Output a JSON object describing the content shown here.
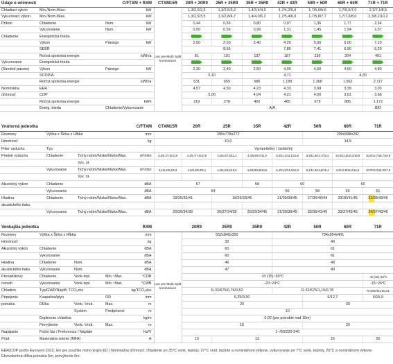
{
  "performance": {
    "header": {
      "title": "Údaje o účinnosti",
      "model": "C/FTXM + RXM",
      "columns": [
        "CTXM15R",
        "20R + 20R9",
        "25R + 25R9",
        "35R + 35R9",
        "42R + 42R",
        "50R + 50R",
        "60R + 60R",
        "71R + 71R"
      ]
    },
    "note": "Len pre Multi Split kombinácie",
    "rows": [
      {
        "label": "Chladiaci výkon",
        "sub": "Min./Nom./Max.",
        "unit": "kW",
        "values": [
          "1,3/2,0/2,6",
          "1,3/2,5/3,2",
          "1,4/3,4/4,0",
          "1,7/4,2/5,0",
          "1,7/5,0/5,6",
          "1,7/6,0/7,0",
          "2,3/7,1/8,5"
        ]
      },
      {
        "label": "Vykurovací výkon",
        "sub": "Min./Nom./Max.",
        "unit": "kW",
        "values": [
          "1,3/2,5/3,5",
          "1,3/2,8/4,7",
          "1,4/4,0/5,2",
          "1,7/5,4/6,0",
          "1,7/5,8/7,7",
          "1,7/7,0/8,0",
          "2,3/8,2/10,2"
        ]
      },
      {
        "label": "Príkon",
        "sub": "Chladenie",
        "detail": "Nom.",
        "unit": "kW",
        "values": [
          "0,44",
          "0,56",
          "0,80",
          "0,97",
          "1,36",
          "1,77",
          "2,34"
        ]
      },
      {
        "sub": "Vykurovanie",
        "detail": "Nom.",
        "unit": "kW",
        "values": [
          "0,50",
          "0,56",
          "0,99",
          "1,31",
          "1,45",
          "1,94",
          "2,57"
        ]
      },
      {
        "label": "Chladenie",
        "sub": "Energetická trieda"
      },
      {
        "sub": "Výkon",
        "detail": "Pdesign",
        "unit": "kW",
        "values": [
          "2,00",
          "2,50",
          "3,40",
          "4,20",
          "5,00",
          "6,00",
          "7,10"
        ]
      },
      {
        "sub": "SEER",
        "values": [
          "8,65",
          "7,85",
          "7,41",
          "6,90",
          "6,20"
        ]
      },
      {
        "sub": "Ročná spotreba energie",
        "unit": "kWh/a",
        "values": [
          "81",
          "101",
          "137",
          "187",
          "236",
          "304",
          "401"
        ]
      },
      {
        "label": "Vykurovanie",
        "sub": "Energetická trieda"
      },
      {
        "label": "(Stredné pásmo)",
        "sub": "Výkon",
        "detail": "Pdesign",
        "unit": "kW",
        "values": [
          "2,30",
          "2,40",
          "2,50",
          "4,00",
          "4,60",
          "4,60",
          "4,80"
        ]
      },
      {
        "sub": "SCOP/A",
        "values": [
          "5,10",
          "4,71",
          "4,30"
        ]
      },
      {
        "sub": "Ročná spotreba energie",
        "unit": "kWh/a",
        "values": [
          "631",
          "659",
          "686",
          "1.189",
          "1.368",
          "1.562",
          "2.117"
        ]
      },
      {
        "label": "Nominálna",
        "sub": "EER",
        "values": [
          "4,57",
          "4,50",
          "4,23",
          "4,33",
          "3,68",
          "3,39",
          "3,03"
        ]
      },
      {
        "label": "účinnosť",
        "sub": "COP",
        "values": [
          "5,00",
          "4,04",
          "4,21",
          "4,00",
          "3,61",
          "3,68"
        ]
      },
      {
        "sub": "Ročná spotreba energie",
        "unit": "kWh",
        "values": [
          "219",
          "278",
          "402",
          "485",
          "679",
          "885",
          "1.172"
        ]
      },
      {
        "sub": "Energ. trieda",
        "detail": "Chladenie/Vykurovanie",
        "values": [
          "A/A",
          "B/D"
        ]
      }
    ]
  },
  "indoor_unit": {
    "header": {
      "title": "Vnútorná jednotka",
      "model": "C/FTXM",
      "columns": [
        "CTXM15R",
        "20R",
        "25R",
        "35R",
        "42R",
        "50R",
        "60R",
        "71R"
      ]
    },
    "rows": [
      {
        "label": "Rozmery",
        "sub": "Výška x Šírka x Hĺbka",
        "unit": "mm",
        "values": [
          "295x778x272",
          "299x998x292"
        ]
      },
      {
        "label": "Hmotnosť",
        "unit": "kg",
        "values": [
          "10,0",
          "14,5"
        ]
      },
      {
        "label": "Filter vzduchu",
        "sub": "Typ",
        "values": [
          "Vymeniteľný / čistiteľný"
        ]
      },
      {
        "label": "Prietok vzduchu",
        "sub": "Chladenie",
        "detail": "Tichý režim/Nízke/Nízke/Max.",
        "unit": "m³/min",
        "values": [
          "4,3/5,7/7,5/10,9",
          "4,1/5,7/7,6/10,9",
          "4,2/6,0/7,8/11,3",
          "4,3/6,9/8,7/11,0",
          "8,3/11,4/14,1/15,8",
          "8,3/11,8/14,7/16,3",
          "10,0/12,5/15,2/16,9",
          "10,8/12,7/16,7/16,9"
        ]
      },
      {
        "detail": "Vys. ot."
      },
      {
        "sub": "Vykurovanie",
        "detail": "Tichý režim/Nízke/Nízke/Max.",
        "unit": "m³/min",
        "values": [
          "5,1/6,2/8,2/9,3",
          "4,9/6,3/8,0/9,4",
          "4,9/6,5/8,5/10,5",
          "4,9/6,8/8,9/10,9",
          "9,4/11,6/14,5/15,8",
          "9,4/11,9/14,8/16,4",
          "9,9/12,8/15,0/16,9",
          "10,0/13,3/16,3/17,9"
        ]
      },
      {
        "detail": "Vys. ot."
      },
      {
        "label": "Akustický výkon",
        "sub": "Chladenie",
        "unit": "dBA",
        "values": [
          "57",
          "58",
          "60",
          "60"
        ]
      },
      {
        "sub": "Vykurovanie",
        "unit": "dBA",
        "values": [
          "54",
          "56",
          "58",
          "59",
          "61"
        ]
      },
      {
        "label": "Hladina",
        "sub": "Chladenie",
        "detail": "Tichý režim/Nízke/Nízke/Max.",
        "unit": "dBA",
        "values": [
          "19/25/33/41",
          "19/29/33/45",
          "21/30/39/45",
          "27/36/40/44",
          "33/36/41/45",
          "32/38/43/46"
        ]
      },
      {
        "label": "akustického tlaku"
      },
      {
        "sub": "Vykurovanie",
        "detail": "Tichý režim/Nízke/Nízke/Max.",
        "unit": "dBA",
        "values": [
          "20/26/34/39",
          "20/27/34/39",
          "20/29/34/45",
          "21/30/39/45",
          "33/36/41/45",
          "33/37/43/45",
          "34/37/42/46"
        ]
      }
    ]
  },
  "outdoor_unit": {
    "header": {
      "title": "Vonkajšia jednotka",
      "model": "RXM",
      "columns": [
        "20R9",
        "25R9",
        "35R9",
        "42R",
        "50R",
        "60R",
        "71R"
      ]
    },
    "note": "Len pre Multi Split kombinácie",
    "rows": [
      {
        "label": "Rozmery",
        "sub": "Výška x Šírka x Hĺbka",
        "unit": "mm",
        "values": [
          "552x840x350",
          "734x954x401"
        ]
      },
      {
        "label": "Hmotnosť",
        "unit": "kg",
        "values": [
          "32",
          "49"
        ]
      },
      {
        "label": "Akustický výkon",
        "sub": "Chladenie",
        "unit": "dBA",
        "values": [
          "60",
          "61"
        ]
      },
      {
        "sub": "Vykurovanie",
        "unit": "dBA",
        "values": [
          "60",
          "61"
        ]
      },
      {
        "label": "Hladina",
        "sub": "Chladenie",
        "detail": "Nom.",
        "unit": "dBA",
        "values": [
          "46",
          "48"
        ]
      },
      {
        "label": "akustického tlaku",
        "sub": "Vykurovanie",
        "detail": "Nom.",
        "unit": "dBA",
        "values": [
          "47",
          "49"
        ]
      },
      {
        "label": "Prevádzkový",
        "sub": "Chladenie",
        "detail": "Vonk.tepl.",
        "extra": "Min.~Max.",
        "unit": "°CDB",
        "values": [
          "-10 (15)~50°C",
          "-10 (15)~46°C"
        ]
      },
      {
        "label": "rozsah",
        "sub": "Vykurovanie",
        "detail": "Vonk.tepl.",
        "extra": "Min.~Max.",
        "unit": "°CWB",
        "values": [
          "-20~24°C",
          "-15~24°C"
        ]
      },
      {
        "label": "Chladivo",
        "sub": "Typ/GWP/Náplň/ TCO₂ekv",
        "unit": "kg/TCO₂ekv",
        "values": [
          "R-32/675/0,76/0,52",
          "R-32/675/1,15/0,78",
          "R-32/675/1,5/1,01"
        ]
      },
      {
        "label": "Pripojenie",
        "sub": "Kvapalina/plyn",
        "extra": "OD",
        "unit": "mm",
        "values": [
          "6,35/9,50",
          "6/12,7",
          "6/15,9"
        ]
      },
      {
        "label": "potrubia",
        "sub": "Dĺžka",
        "detail": "Vonk.-Vnút.",
        "extra": "Max.",
        "unit": "m",
        "values": [
          "20",
          "30"
        ]
      },
      {
        "detail": "Systém",
        "extra": "Predplnené",
        "unit": "m",
        "values": [
          "10"
        ]
      },
      {
        "sub": "Doplnenie chladiva",
        "unit": "kg/m",
        "values": [
          "0,02 (pre potrubie nad 10m)"
        ]
      },
      {
        "sub": "Prevýšenie",
        "detail": "Vonk.-Vnút.",
        "extra": "Max.",
        "unit": "m",
        "values": [
          "15",
          "20"
        ]
      },
      {
        "label": "Napájanie",
        "sub": "Počet fáz / Frekvencia / Napätie",
        "unit": "Hz/V",
        "values": [
          "1~/50/220-240"
        ]
      },
      {
        "label": "Prúd",
        "sub": "Maximálne istenie (MFA)",
        "unit": "A",
        "values": [
          "10",
          "13",
          "16",
          "20"
        ]
      }
    ]
  },
  "footnote": "EER/COP podľa Eurovent 2012, len pre použitie mimo krajín EÚ | Nominálna účinnosť: chladenie pri 35°C vonk. teploty, 27°C vnút. teplote a nominálnom výkone, vykurovanie pri 7°C vonk. teploty, 20°C a nominálnom výkone. Ekvivalentná dĺžka potrubia 5m, prevýšenie 0m."
}
